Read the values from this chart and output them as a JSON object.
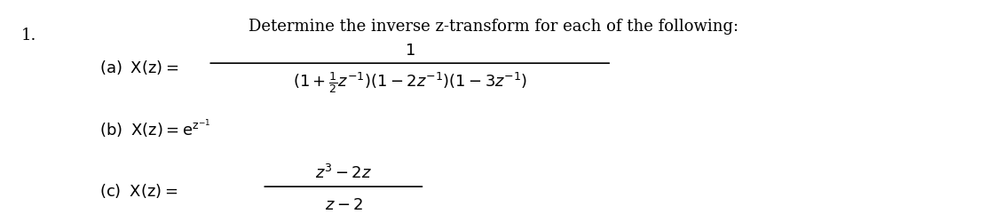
{
  "background_color": "#ffffff",
  "text_color": "#000000",
  "title": "Determine the inverse z-transform for each of the following:",
  "problem_number": "1.",
  "part_a_label": "(a)  X(z) =",
  "part_a_num": "1",
  "part_a_den": "(1+\\frac{1}{2}z^{-1})(1-2z^{-1})(1-3z^{-1})",
  "part_b": "(b)  X(z) = e^{z^{-1}}",
  "part_c_label": "(c)  X(z) =",
  "part_c_num": "z^3-2z",
  "part_c_den": "z-2",
  "figsize": [
    11.12,
    2.51
  ],
  "dpi": 100
}
